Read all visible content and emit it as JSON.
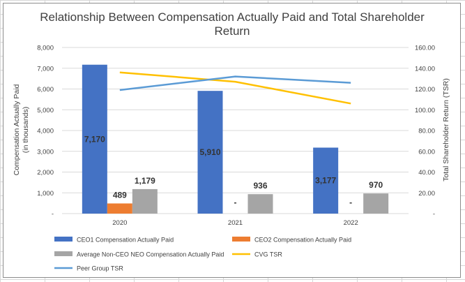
{
  "chart_data": {
    "type": "bar",
    "title_lines": [
      "Relationship Between Compensation Actually Paid and Total Shareholder",
      "Return"
    ],
    "categories": [
      "2020",
      "2021",
      "2022"
    ],
    "ylabel": [
      "Compensation Actually Paid",
      "(in thousands)"
    ],
    "y2label": "Total Shareholder Return (TSR)",
    "ylim": [
      0,
      8000
    ],
    "y2lim": [
      0,
      160
    ],
    "yticks": [
      {
        "value": 0,
        "label": "-"
      },
      {
        "value": 1000,
        "label": "1,000"
      },
      {
        "value": 2000,
        "label": "2,000"
      },
      {
        "value": 3000,
        "label": "3,000"
      },
      {
        "value": 4000,
        "label": "4,000"
      },
      {
        "value": 5000,
        "label": "5,000"
      },
      {
        "value": 6000,
        "label": "6,000"
      },
      {
        "value": 7000,
        "label": "7,000"
      },
      {
        "value": 8000,
        "label": "8,000"
      }
    ],
    "y2ticks": [
      {
        "value": 0,
        "label": "-"
      },
      {
        "value": 20,
        "label": "20.00"
      },
      {
        "value": 40,
        "label": "40.00"
      },
      {
        "value": 60,
        "label": "60.00"
      },
      {
        "value": 80,
        "label": "80.00"
      },
      {
        "value": 100,
        "label": "100.00"
      },
      {
        "value": 120,
        "label": "120.00"
      },
      {
        "value": 140,
        "label": "140.00"
      },
      {
        "value": 160,
        "label": "160.00"
      }
    ],
    "bar_series": [
      {
        "name": "CEO1 Compensation Actually Paid",
        "color": "#4472C4",
        "values": [
          7170,
          5910,
          3177
        ],
        "labels": [
          "7,170",
          "5,910",
          "3,177"
        ],
        "label_pos": "middle"
      },
      {
        "name": "CEO2 Compensation Actually Paid",
        "color": "#ED7D31",
        "values": [
          489,
          0,
          0
        ],
        "labels": [
          "489",
          "-",
          "-"
        ],
        "label_pos": "above"
      },
      {
        "name": "Average Non-CEO NEO Compensation Actually Paid",
        "color": "#A5A5A5",
        "values": [
          1179,
          936,
          970
        ],
        "labels": [
          "1,179",
          "936",
          "970"
        ],
        "label_pos": "above"
      }
    ],
    "line_series": [
      {
        "name": "CVG TSR",
        "color": "#FFC000",
        "values": [
          136,
          127,
          106
        ]
      },
      {
        "name": "Peer Group TSR",
        "color": "#5B9BD5",
        "values": [
          119,
          132,
          126
        ]
      }
    ],
    "legend_order": [
      "CEO1 Compensation Actually Paid",
      "CEO2 Compensation Actually Paid",
      "Average Non-CEO NEO Compensation Actually Paid",
      "CVG TSR",
      "Peer Group TSR"
    ]
  }
}
